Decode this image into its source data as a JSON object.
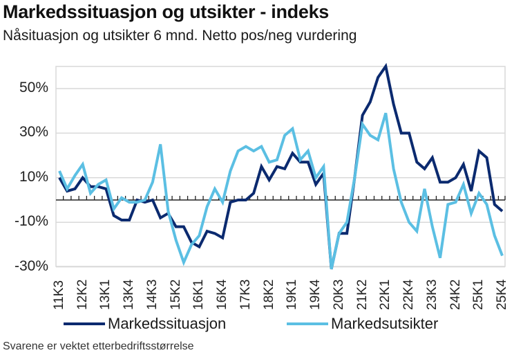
{
  "header": {
    "title": "Markedssituasjon og utsikter - indeks",
    "subtitle": "Nåsituasjon og utsikter 6 mnd. Netto pos/neg vurdering"
  },
  "footnote": "Svarene er vektet etterbedriftsstørrelse",
  "chart_data": {
    "type": "line",
    "title": "Markedssituasjon og utsikter - indeks",
    "subtitle": "Nåsituasjon og utsikter 6 mnd. Netto pos/neg vurdering",
    "xlabel": "",
    "ylabel": "",
    "ylim": [
      -30,
      60
    ],
    "yticks": [
      -30,
      -10,
      10,
      30,
      50
    ],
    "ytick_labels": [
      "-30%",
      "-10%",
      "10%",
      "30%",
      "50%"
    ],
    "grid": true,
    "legend_position": "bottom",
    "x": [
      "11K3",
      "11K4",
      "12K1",
      "12K2",
      "12K3",
      "12K4",
      "13K1",
      "13K2",
      "13K3",
      "13K4",
      "14K1",
      "14K2",
      "14K3",
      "14K4",
      "15K1",
      "15K2",
      "15K3",
      "15K4",
      "16K1",
      "16K2",
      "16K3",
      "16K4",
      "17K1",
      "17K2",
      "17K3",
      "17K4",
      "18K1",
      "18K2",
      "18K3",
      "18K4",
      "19K1",
      "19K2",
      "19K3",
      "19K4",
      "20K1",
      "20K2",
      "20K3",
      "20K4",
      "21K1",
      "21K2",
      "21K3",
      "21K4",
      "22K1",
      "22K2",
      "22K3",
      "22K4",
      "23K1",
      "23K2",
      "23K3",
      "23K4",
      "24K1",
      "24K2",
      "24K3",
      "24K4",
      "25K1",
      "25K2",
      "25K3",
      "25K4"
    ],
    "xtick_labels": [
      "11K3",
      "12K2",
      "13K1",
      "13K4",
      "14K3",
      "15K2",
      "16K1",
      "16K4",
      "17K3",
      "18K2",
      "19K1",
      "19K4",
      "20K3",
      "21K2",
      "22K1",
      "22K4",
      "23K3",
      "24K2",
      "25K1",
      "25K4"
    ],
    "series": [
      {
        "name": "Markedssituasjon",
        "color": "#0b2a6f",
        "values": [
          10,
          4,
          5,
          10,
          6,
          6,
          5,
          -7,
          -9,
          -9,
          0,
          -1,
          0,
          -8,
          -6,
          -12,
          -12,
          -19,
          -21,
          -14,
          -15,
          -17,
          -1,
          0,
          0,
          3,
          15,
          9,
          15,
          14,
          21,
          17,
          17,
          7,
          12,
          -31,
          -15,
          -15,
          10,
          38,
          44,
          55,
          60,
          43,
          30,
          30,
          17,
          14,
          19,
          8,
          8,
          10,
          16,
          4,
          22,
          19,
          -2,
          -5
        ]
      },
      {
        "name": "Markedsutsikter",
        "color": "#5bbfe3",
        "values": [
          13,
          5,
          11,
          16,
          3,
          7,
          9,
          -4,
          1,
          -1,
          -1,
          0,
          8,
          25,
          -5,
          -18,
          -28,
          -20,
          -16,
          -3,
          5,
          -1,
          13,
          22,
          24,
          22,
          24,
          17,
          18,
          29,
          32,
          18,
          22,
          10,
          15,
          -31,
          -15,
          -10,
          10,
          34,
          29,
          27,
          39,
          14,
          -1,
          -10,
          -14,
          5,
          -12,
          -26,
          -2,
          -1,
          7,
          -6,
          3,
          -2,
          -16,
          -25
        ]
      }
    ]
  }
}
